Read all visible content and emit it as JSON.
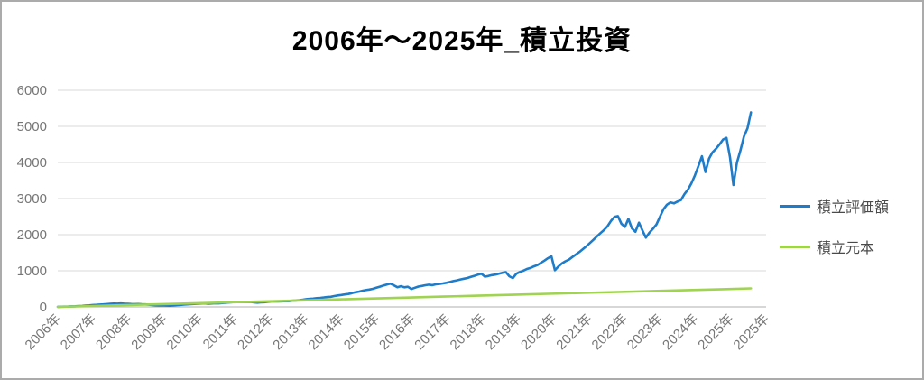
{
  "frame": {
    "border_color": "#ababab",
    "background": "#ffffff"
  },
  "axis": {
    "label_color": "#767676",
    "grid_color": "#d9d9d9",
    "axis_line_color": "#bfbfbf"
  },
  "chart_data": {
    "type": "line",
    "title": "2006年～2025年_積立投資",
    "xlabel": "",
    "ylabel": "",
    "grid": true,
    "legend_position": "right",
    "ylim": [
      0,
      6000
    ],
    "y_ticks": [
      0,
      1000,
      2000,
      3000,
      4000,
      5000,
      6000
    ],
    "x_tick_labels": [
      "2006年",
      "2007年",
      "2008年",
      "2009年",
      "2010年",
      "2011年",
      "2012年",
      "2013年",
      "2014年",
      "2015年",
      "2016年",
      "2017年",
      "2018年",
      "2019年",
      "2020年",
      "2021年",
      "2022年",
      "2023年",
      "2024年",
      "2025年",
      "2025年"
    ],
    "series": [
      {
        "name": "積立評価額",
        "color": "#1f7cc9",
        "t0": 2006.0,
        "dt": 0.1,
        "values": [
          2,
          4,
          8,
          10,
          14,
          18,
          24,
          28,
          34,
          42,
          52,
          58,
          64,
          70,
          78,
          86,
          93,
          89,
          95,
          90,
          88,
          81,
          77,
          80,
          73,
          69,
          59,
          50,
          42,
          38,
          42,
          35,
          33,
          40,
          48,
          55,
          62,
          70,
          76,
          82,
          88,
          95,
          99,
          91,
          96,
          101,
          97,
          108,
          115,
          123,
          132,
          139,
          134,
          141,
          136,
          139,
          127,
          117,
          124,
          131,
          142,
          151,
          156,
          149,
          154,
          161,
          158,
          169,
          177,
          188,
          200,
          214,
          222,
          231,
          242,
          250,
          259,
          272,
          281,
          299,
          318,
          329,
          344,
          358,
          380,
          404,
          423,
          444,
          464,
          479,
          500,
          529,
          561,
          589,
          621,
          646,
          598,
          545,
          572,
          543,
          558,
          494,
          531,
          562,
          579,
          601,
          614,
          603,
          626,
          634,
          650,
          667,
          691,
          714,
          734,
          761,
          779,
          801,
          829,
          861,
          892,
          921,
          838,
          856,
          881,
          894,
          919,
          946,
          962,
          848,
          798,
          921,
          968,
          1002,
          1049,
          1078,
          1122,
          1158,
          1219,
          1281,
          1348,
          1402,
          1015,
          1118,
          1203,
          1262,
          1308,
          1383,
          1452,
          1519,
          1601,
          1683,
          1771,
          1858,
          1952,
          2043,
          2128,
          2232,
          2377,
          2492,
          2516,
          2302,
          2214,
          2438,
          2177,
          2079,
          2332,
          2117,
          1918,
          2057,
          2162,
          2283,
          2498,
          2703,
          2831,
          2896,
          2868,
          2917,
          2958,
          3122,
          3247,
          3424,
          3648,
          3903,
          4172,
          3736,
          4103,
          4281,
          4377,
          4498,
          4632,
          4683,
          4147,
          3376,
          3998,
          4338,
          4722,
          4947,
          5388
        ]
      },
      {
        "name": "積立元本",
        "color": "#9fd350",
        "points": [
          [
            2006,
            0
          ],
          [
            2007,
            26
          ],
          [
            2008,
            52
          ],
          [
            2009,
            78
          ],
          [
            2010,
            103
          ],
          [
            2011,
            129
          ],
          [
            2012,
            155
          ],
          [
            2013,
            181
          ],
          [
            2014,
            207
          ],
          [
            2015,
            233
          ],
          [
            2016,
            258
          ],
          [
            2017,
            284
          ],
          [
            2018,
            310
          ],
          [
            2019,
            336
          ],
          [
            2020,
            362
          ],
          [
            2021,
            388
          ],
          [
            2022,
            413
          ],
          [
            2023,
            439
          ],
          [
            2024,
            465
          ],
          [
            2025,
            491
          ],
          [
            2025.8,
            512
          ]
        ]
      }
    ]
  }
}
